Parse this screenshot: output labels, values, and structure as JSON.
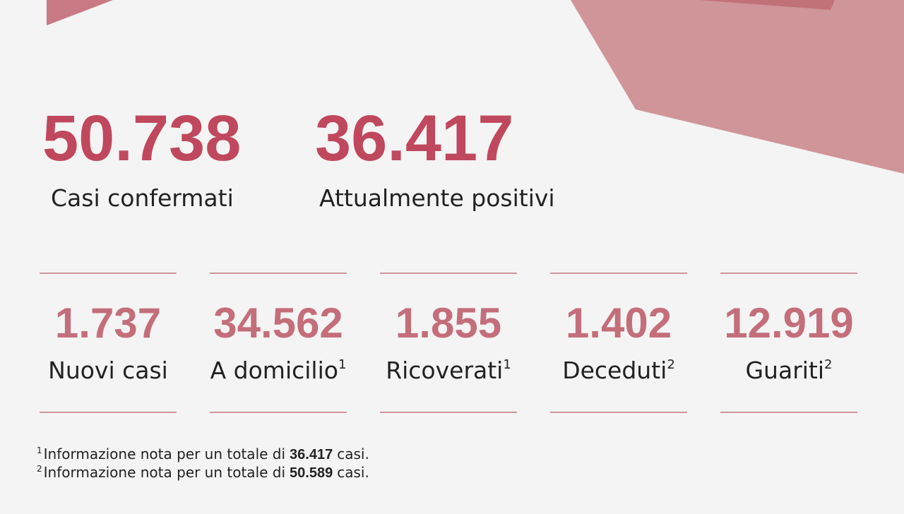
{
  "headline": [
    {
      "value": "50.738",
      "label": "Casi confermati"
    },
    {
      "value": "36.417",
      "label": "Attualmente positivi"
    }
  ],
  "stats": [
    {
      "value": "1.737",
      "label": "Nuovi casi"
    },
    {
      "value": "34.562",
      "label": "A domicilio",
      "note": "1"
    },
    {
      "value": "1.855",
      "label": "Ricoverati",
      "note": "1"
    },
    {
      "value": "1.402",
      "label": "Deceduti",
      "note": "2"
    },
    {
      "value": "12.919",
      "label": "Guariti",
      "note": "2"
    }
  ],
  "footnotes": [
    {
      "mark": "1",
      "text": "Informazione nota per un totale di",
      "value": "36.417",
      "suffix": "casi."
    },
    {
      "mark": "2",
      "text": "Informazione nota per un totale di",
      "value": "50.589",
      "suffix": "casi."
    }
  ]
}
